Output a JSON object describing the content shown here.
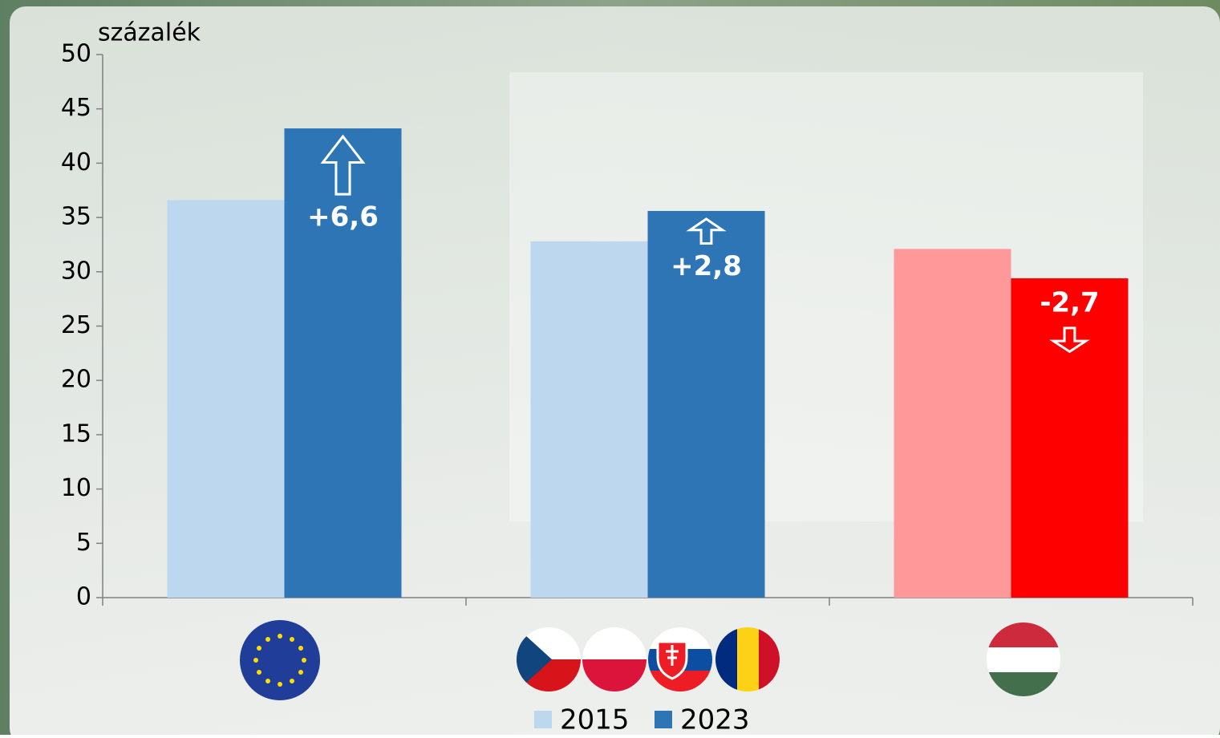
{
  "chart_data": {
    "type": "bar",
    "ylabel": "százalék",
    "categories": [
      null,
      null,
      null
    ],
    "series": [
      {
        "name": "2015",
        "color": "#bdd7ee",
        "point_colors": [
          "#bdd7ee",
          "#bdd7ee",
          "#ff9999"
        ],
        "values": [
          36.6,
          32.8,
          32.1
        ]
      },
      {
        "name": "2023",
        "color": "#2e75b6",
        "point_colors": [
          "#2e75b6",
          "#2e75b6",
          "#ff0000"
        ],
        "values": [
          43.2,
          35.6,
          29.4
        ]
      }
    ],
    "annotations": [
      {
        "text": "+6,6",
        "value": 6.6
      },
      {
        "text": "+2,8",
        "value": 2.8
      },
      {
        "text": "-2,7",
        "value": -2.7
      }
    ],
    "ylim": [
      0,
      50
    ],
    "yticks": [
      0,
      5,
      10,
      15,
      20,
      25,
      30,
      35,
      40,
      45,
      50
    ]
  }
}
